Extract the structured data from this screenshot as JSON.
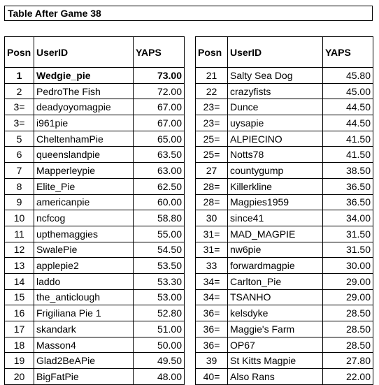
{
  "title": "Table After Game 38",
  "columns": {
    "pos": "Posn",
    "user": "UserID",
    "score": "YAPS"
  },
  "rows": [
    {
      "pos": "1",
      "user": "Wedgie_pie",
      "score": "73.00"
    },
    {
      "pos": "2",
      "user": "PedroThe Fish",
      "score": "72.00"
    },
    {
      "pos": "3=",
      "user": "deadyoyomagpie",
      "score": "67.00"
    },
    {
      "pos": "3=",
      "user": "i961pie",
      "score": "67.00"
    },
    {
      "pos": "5",
      "user": "CheltenhamPie",
      "score": "65.00"
    },
    {
      "pos": "6",
      "user": "queenslandpie",
      "score": "63.50"
    },
    {
      "pos": "7",
      "user": "Mapperleypie",
      "score": "63.00"
    },
    {
      "pos": "8",
      "user": "Elite_Pie",
      "score": "62.50"
    },
    {
      "pos": "9",
      "user": "americanpie",
      "score": "60.00"
    },
    {
      "pos": "10",
      "user": "ncfcog",
      "score": "58.80"
    },
    {
      "pos": "11",
      "user": "upthemaggies",
      "score": "55.00"
    },
    {
      "pos": "12",
      "user": "SwalePie",
      "score": "54.50"
    },
    {
      "pos": "13",
      "user": "applepie2",
      "score": "53.50"
    },
    {
      "pos": "14",
      "user": "laddo",
      "score": "53.30"
    },
    {
      "pos": "15",
      "user": "the_anticlough",
      "score": "53.00"
    },
    {
      "pos": "16",
      "user": "Frigiliana Pie 1",
      "score": "52.80"
    },
    {
      "pos": "17",
      "user": "skandark",
      "score": "51.00"
    },
    {
      "pos": "18",
      "user": "Masson4",
      "score": "50.00"
    },
    {
      "pos": "19",
      "user": "Glad2BeAPie",
      "score": "49.50"
    },
    {
      "pos": "20",
      "user": "BigFatPie",
      "score": "48.00"
    },
    {
      "pos": "21",
      "user": "Salty Sea Dog",
      "score": "45.80"
    },
    {
      "pos": "22",
      "user": "crazyfists",
      "score": "45.00"
    },
    {
      "pos": "23=",
      "user": "Dunce",
      "score": "44.50"
    },
    {
      "pos": "23=",
      "user": "uysapie",
      "score": "44.50"
    },
    {
      "pos": "25=",
      "user": "ALPIECINO",
      "score": "41.50"
    },
    {
      "pos": "25=",
      "user": "Notts78",
      "score": "41.50"
    },
    {
      "pos": "27",
      "user": "countygump",
      "score": "38.50"
    },
    {
      "pos": "28=",
      "user": "Killerkline",
      "score": "36.50"
    },
    {
      "pos": "28=",
      "user": "Magpies1959",
      "score": "36.50"
    },
    {
      "pos": "30",
      "user": "since41",
      "score": "34.00"
    },
    {
      "pos": "31=",
      "user": "MAD_MAGPIE",
      "score": "31.50"
    },
    {
      "pos": "31=",
      "user": "nw6pie",
      "score": "31.50"
    },
    {
      "pos": "33",
      "user": "forwardmagpie",
      "score": "30.00"
    },
    {
      "pos": "34=",
      "user": "Carlton_Pie",
      "score": "29.00"
    },
    {
      "pos": "34=",
      "user": "TSANHO",
      "score": "29.00"
    },
    {
      "pos": "36=",
      "user": "kelsdyke",
      "score": "28.50"
    },
    {
      "pos": "36=",
      "user": "Maggie's Farm",
      "score": "28.50"
    },
    {
      "pos": "36=",
      "user": "OP67",
      "score": "28.50"
    },
    {
      "pos": "39",
      "user": "St Kitts Magpie",
      "score": "27.80"
    },
    {
      "pos": "40=",
      "user": "Also Rans",
      "score": "22.00"
    }
  ]
}
